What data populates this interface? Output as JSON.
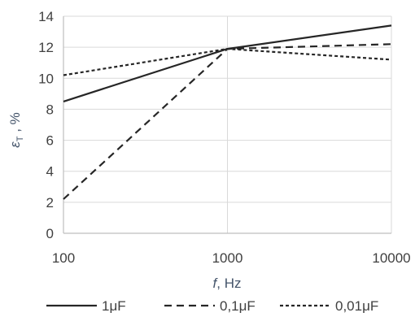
{
  "chart_data": {
    "type": "line",
    "x_scale": "log",
    "x": [
      100,
      1000,
      10000
    ],
    "x_ticks": [
      "100",
      "1000",
      "10000"
    ],
    "xlim": [
      100,
      10000
    ],
    "xlabel_var": "f",
    "xlabel_unit": ", Hz",
    "ylim": [
      0,
      14
    ],
    "y_ticks": [
      "0",
      "2",
      "4",
      "6",
      "8",
      "10",
      "12",
      "14"
    ],
    "ylabel_var": "ε",
    "ylabel_sub": "T",
    "ylabel_unit": " , %",
    "grid": "horizontal",
    "legend_position": "bottom",
    "series": [
      {
        "name": "1μF",
        "values": [
          8.5,
          11.9,
          13.4
        ],
        "dash": "solid",
        "color": "#262626"
      },
      {
        "name": "0,1μF",
        "values": [
          2.2,
          11.9,
          12.2
        ],
        "dash": "dashed",
        "color": "#262626"
      },
      {
        "name": "0,01μF",
        "values": [
          10.2,
          11.9,
          11.2
        ],
        "dash": "dotted",
        "color": "#262626"
      }
    ]
  }
}
